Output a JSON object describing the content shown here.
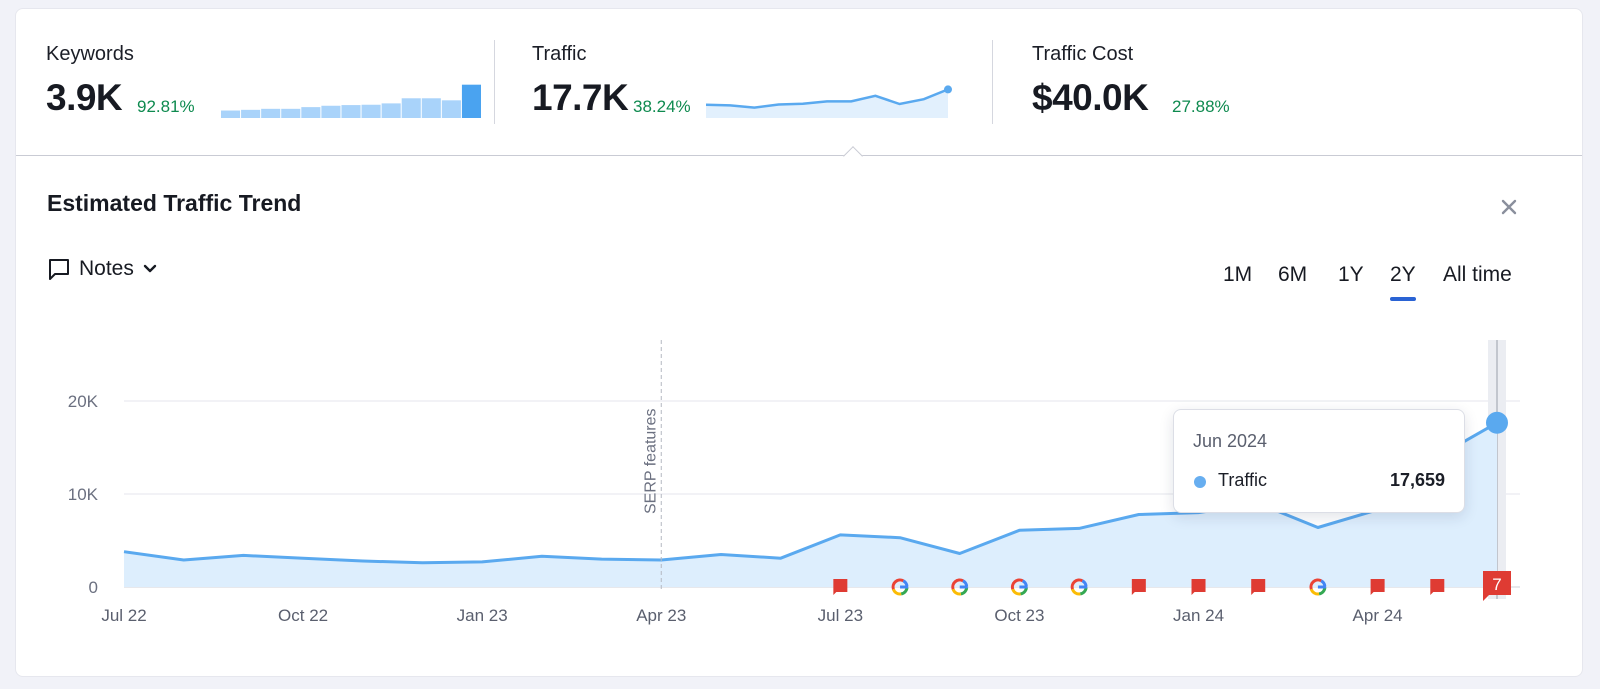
{
  "metrics": {
    "keywords": {
      "label": "Keywords",
      "value": "3.9K",
      "delta": "92.81%"
    },
    "traffic": {
      "label": "Traffic",
      "value": "17.7K",
      "delta": "38.24%"
    },
    "traffic_cost": {
      "label": "Traffic Cost",
      "value": "$40.0K",
      "delta": "27.88%"
    },
    "keywords_sparkline": [
      0.22,
      0.24,
      0.27,
      0.27,
      0.32,
      0.36,
      0.38,
      0.39,
      0.43,
      0.58,
      0.58,
      0.52,
      0.98
    ],
    "traffic_sparkline": [
      0.4,
      0.38,
      0.3,
      0.41,
      0.44,
      0.52,
      0.52,
      0.72,
      0.43,
      0.6,
      0.95
    ]
  },
  "trend": {
    "title": "Estimated Traffic Trend",
    "notes_label": "Notes",
    "close_icon": "close-icon",
    "ranges": [
      "1M",
      "6M",
      "1Y",
      "2Y",
      "All time"
    ],
    "active_range": "2Y"
  },
  "tooltip": {
    "date": "Jun 2024",
    "series": "Traffic",
    "value": "17,659"
  },
  "colors": {
    "line": "#5aa9ef",
    "area": "#ddeefd",
    "delta_positive": "#0e8a4f",
    "active_tab": "#2a63d4",
    "note_marker": "#df3b33"
  },
  "chart_data": {
    "type": "area",
    "x": [
      "Jul 22",
      "Aug 22",
      "Sep 22",
      "Oct 22",
      "Nov 22",
      "Dec 22",
      "Jan 23",
      "Feb 23",
      "Mar 23",
      "Apr 23",
      "May 23",
      "Jun 23",
      "Jul 23",
      "Aug 23",
      "Sep 23",
      "Oct 23",
      "Nov 23",
      "Dec 23",
      "Jan 24",
      "Feb 24",
      "Mar 24",
      "Apr 24",
      "May 24",
      "Jun 24"
    ],
    "series": [
      {
        "name": "Traffic",
        "values": [
          3800,
          2900,
          3400,
          3100,
          2800,
          2600,
          2700,
          3300,
          3000,
          2900,
          3500,
          3100,
          5600,
          5300,
          3600,
          6100,
          6300,
          7800,
          8000,
          9000,
          6400,
          8300,
          14000,
          17659
        ]
      }
    ],
    "x_ticks": [
      "Jul 22",
      "Oct 22",
      "Jan 23",
      "Apr 23",
      "Jul 23",
      "Oct 23",
      "Jan 24",
      "Apr 24"
    ],
    "y_ticks": [
      "0",
      "10K",
      "20K"
    ],
    "ylim": [
      0,
      20000
    ],
    "annotation": {
      "label": "SERP features",
      "at": "Apr 23"
    },
    "markers": [
      {
        "at": "Jul 23",
        "kind": "note"
      },
      {
        "at": "Aug 23",
        "kind": "google"
      },
      {
        "at": "Sep 23",
        "kind": "google"
      },
      {
        "at": "Oct 23",
        "kind": "google"
      },
      {
        "at": "Nov 23",
        "kind": "google"
      },
      {
        "at": "Dec 23",
        "kind": "note"
      },
      {
        "at": "Jan 24",
        "kind": "note"
      },
      {
        "at": "Feb 24",
        "kind": "note"
      },
      {
        "at": "Mar 24",
        "kind": "google"
      },
      {
        "at": "Apr 24",
        "kind": "note"
      },
      {
        "at": "May 24",
        "kind": "note"
      },
      {
        "at": "Jun 24",
        "kind": "note-count",
        "label": "7"
      }
    ],
    "grid": true
  }
}
